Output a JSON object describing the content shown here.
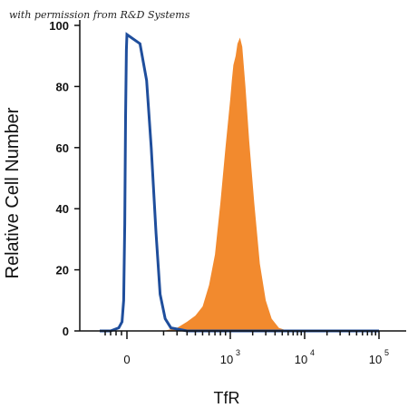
{
  "credit": "with permission from R&D Systems",
  "chart_data": {
    "type": "area",
    "xlabel": "TfR",
    "ylabel": "Relative Cell Number",
    "x_scale": "biexponential",
    "ylim": [
      0,
      100
    ],
    "yticks": [
      0,
      20,
      40,
      60,
      80,
      100
    ],
    "xticks": [
      {
        "value": 0,
        "base": "0",
        "exp": ""
      },
      {
        "value": 1000,
        "base": "10",
        "exp": "3"
      },
      {
        "value": 10000,
        "base": "10",
        "exp": "4"
      },
      {
        "value": 100000,
        "base": "10",
        "exp": "5"
      }
    ],
    "grid": false,
    "series": [
      {
        "type": "line",
        "color": "#1f4e9c",
        "x": [
          -500,
          -300,
          -150,
          -90,
          -60,
          -40,
          -25,
          -10,
          0,
          10,
          25,
          40,
          60,
          80,
          110,
          150,
          300,
          100000
        ],
        "y": [
          0,
          0,
          1,
          3,
          10,
          35,
          70,
          92,
          97,
          94,
          82,
          60,
          32,
          12,
          4,
          1,
          0,
          0
        ]
      },
      {
        "type": "area",
        "color": "#f28a2e",
        "x": [
          100,
          200,
          300,
          400,
          500,
          600,
          700,
          800,
          900,
          1000,
          1050,
          1100,
          1180,
          1250,
          1350,
          1450,
          1600,
          1800,
          2100,
          2500,
          3000,
          3600,
          4500,
          6000
        ],
        "y": [
          0,
          1,
          3,
          5,
          8,
          15,
          25,
          42,
          60,
          76,
          82,
          87,
          90,
          94,
          96,
          93,
          80,
          62,
          42,
          22,
          10,
          4,
          1,
          0
        ]
      }
    ]
  }
}
